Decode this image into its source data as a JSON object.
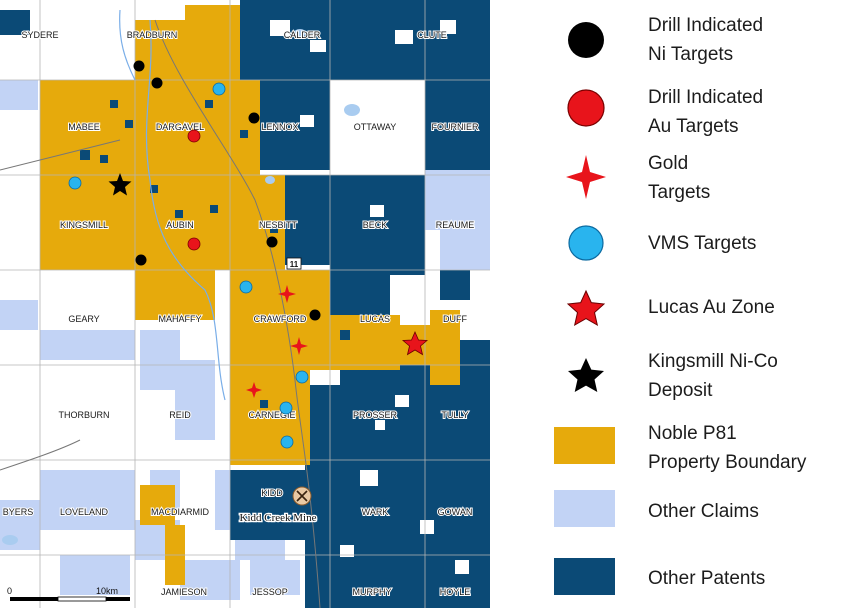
{
  "colors": {
    "property": "#E6AA0C",
    "other_claims": "#C2D3F5",
    "other_patents": "#0B4A76",
    "water": "#A9CCF0",
    "grid": "#B4B4B4",
    "drill_ni": "#000000",
    "drill_au": "#E8141B",
    "gold_target": "#E8141B",
    "vms": "#29B4EE",
    "lucas": "#E8141B",
    "kingsmill": "#000000"
  },
  "townships": [
    {
      "id": "sydere",
      "name": "SYDERE"
    },
    {
      "id": "bradburn",
      "name": "BRADBURN"
    },
    {
      "id": "calder",
      "name": "CALDER"
    },
    {
      "id": "clute",
      "name": "CLUTE"
    },
    {
      "id": "mabee",
      "name": "MABEE"
    },
    {
      "id": "dargavel",
      "name": "DARGAVEL"
    },
    {
      "id": "lennox",
      "name": "LENNOX"
    },
    {
      "id": "ottaway",
      "name": "OTTAWAY"
    },
    {
      "id": "fournier",
      "name": "FOURNIER"
    },
    {
      "id": "kingsmill",
      "name": "KINGSMILL"
    },
    {
      "id": "aubin",
      "name": "AUBIN"
    },
    {
      "id": "nesbitt",
      "name": "NESBITT"
    },
    {
      "id": "beck",
      "name": "BECK"
    },
    {
      "id": "reaume",
      "name": "REAUME"
    },
    {
      "id": "geary",
      "name": "GEARY"
    },
    {
      "id": "mahaffy",
      "name": "MAHAFFY"
    },
    {
      "id": "crawford",
      "name": "CRAWFORD"
    },
    {
      "id": "lucas",
      "name": "LUCAS"
    },
    {
      "id": "duff",
      "name": "DUFF"
    },
    {
      "id": "thorburn",
      "name": "THORBURN"
    },
    {
      "id": "reid",
      "name": "REID"
    },
    {
      "id": "carnegie",
      "name": "CARNEGIE"
    },
    {
      "id": "prosser",
      "name": "PROSSER"
    },
    {
      "id": "tully",
      "name": "TULLY"
    },
    {
      "id": "kidd",
      "name": "KIDD"
    },
    {
      "id": "byers",
      "name": "BYERS"
    },
    {
      "id": "loveland",
      "name": "LOVELAND"
    },
    {
      "id": "macdiarmid",
      "name": "MACDIARMID"
    },
    {
      "id": "wark",
      "name": "WARK"
    },
    {
      "id": "gowan",
      "name": "GOWAN"
    },
    {
      "id": "jamieson",
      "name": "JAMIESON"
    },
    {
      "id": "jessop",
      "name": "JESSOP"
    },
    {
      "id": "murphy",
      "name": "MURPHY"
    },
    {
      "id": "hoyle",
      "name": "HOYLE"
    }
  ],
  "highway_shield": "11",
  "mine": {
    "name": "Kidd Creek Mine",
    "icon": "pick-axes-icon"
  },
  "scale_bar": {
    "start": "0",
    "end": "10km"
  },
  "legend": [
    {
      "id": "drill-ni",
      "line1": "Drill Indicated",
      "line2": "Ni Targets",
      "symbol": "black-circle"
    },
    {
      "id": "drill-au",
      "line1": "Drill Indicated",
      "line2": "Au Targets",
      "symbol": "red-circle"
    },
    {
      "id": "gold",
      "line1": "Gold",
      "line2": "Targets",
      "symbol": "red-four-point-star"
    },
    {
      "id": "vms",
      "line1": "VMS Targets",
      "line2": "",
      "symbol": "cyan-circle"
    },
    {
      "id": "lucas",
      "line1": "Lucas Au Zone",
      "line2": "",
      "symbol": "red-star"
    },
    {
      "id": "kingsmill",
      "line1": "Kingsmill Ni-Co",
      "line2": "Deposit",
      "symbol": "black-star"
    },
    {
      "id": "noble",
      "line1": "Noble P81",
      "line2": "Property Boundary",
      "symbol": "gold-square"
    },
    {
      "id": "claims",
      "line1": "Other Claims",
      "line2": "",
      "symbol": "light-blue-square"
    },
    {
      "id": "patents",
      "line1": "Other Patents",
      "line2": "",
      "symbol": "dark-blue-square"
    }
  ]
}
